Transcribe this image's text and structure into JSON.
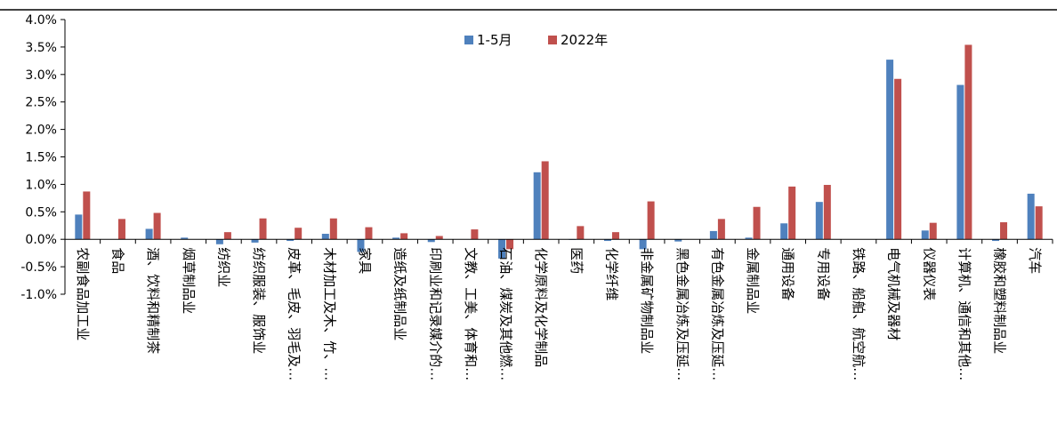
{
  "colors": {
    "series1": "#4F81BD",
    "series2": "#C0504D",
    "axis": "#000000",
    "frame": "#000000"
  },
  "chart_data": {
    "type": "bar",
    "title": "",
    "xlabel": "",
    "ylabel": "",
    "ylim": [
      -0.01,
      0.04
    ],
    "yticks": [
      -0.01,
      -0.005,
      0.0,
      0.005,
      0.01,
      0.015,
      0.02,
      0.025,
      0.03,
      0.035,
      0.04
    ],
    "ytick_labels": [
      "-1.0%",
      "-0.5%",
      "0.0%",
      "0.5%",
      "1.0%",
      "1.5%",
      "2.0%",
      "2.5%",
      "3.0%",
      "3.5%",
      "4.0%"
    ],
    "grid": false,
    "legend_position": "top-center",
    "categories": [
      "农副食品加工业",
      "食品",
      "酒、饮料和精制茶",
      "烟草制品业",
      "纺织业",
      "纺织服装、服饰业",
      "皮革、毛皮、羽毛及…",
      "木材加工及木、竹、…",
      "家具",
      "造纸及纸制品业",
      "印刷业和记录媒介的…",
      "文教、工美、体育和…",
      "石油、煤炭及其他燃…",
      "化学原料及化学制品",
      "医药",
      "化学纤维",
      "非金属矿物制品业",
      "黑色金属冶炼及压延…",
      "有色金属冶炼及压延…",
      "金属制品业",
      "通用设备",
      "专用设备",
      "铁路、船舶、航空航…",
      "电气机械及器材",
      "仪器仪表",
      "计算机、通信和其他…",
      "橡胶和塑料制品业",
      "汽车"
    ],
    "series": [
      {
        "name": "1-5月",
        "values": [
          0.0045,
          0.0,
          0.0019,
          0.0003,
          -0.0009,
          -0.0006,
          -0.0003,
          0.001,
          -0.0023,
          0.0003,
          -0.0005,
          0.0,
          -0.0035,
          0.0122,
          -0.0001,
          -0.0003,
          -0.0018,
          -0.0004,
          0.0015,
          0.0003,
          0.0029,
          0.0068,
          0.0,
          0.0327,
          0.0016,
          0.0281,
          -0.0003,
          0.0083
        ]
      },
      {
        "name": "2022年",
        "values": [
          0.0087,
          0.0037,
          0.0048,
          0.0,
          0.0013,
          0.0038,
          0.0021,
          0.0038,
          0.0022,
          0.0011,
          0.0006,
          0.0018,
          -0.0018,
          0.0142,
          0.0024,
          0.0013,
          0.0069,
          0.0,
          0.0037,
          0.0059,
          0.0096,
          0.0099,
          0.0,
          0.0292,
          0.003,
          0.0354,
          0.0031,
          0.006
        ]
      }
    ]
  }
}
